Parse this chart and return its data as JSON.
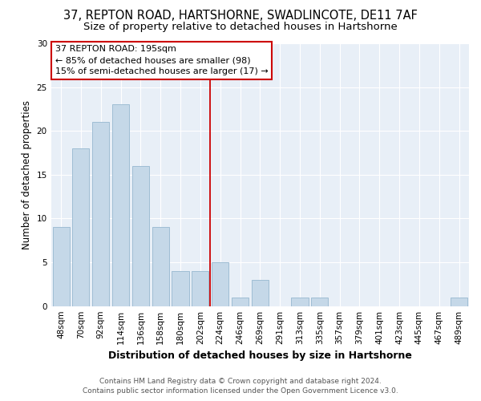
{
  "title1": "37, REPTON ROAD, HARTSHORNE, SWADLINCOTE, DE11 7AF",
  "title2": "Size of property relative to detached houses in Hartshorne",
  "xlabel": "Distribution of detached houses by size in Hartshorne",
  "ylabel": "Number of detached properties",
  "categories": [
    "48sqm",
    "70sqm",
    "92sqm",
    "114sqm",
    "136sqm",
    "158sqm",
    "180sqm",
    "202sqm",
    "224sqm",
    "246sqm",
    "269sqm",
    "291sqm",
    "313sqm",
    "335sqm",
    "357sqm",
    "379sqm",
    "401sqm",
    "423sqm",
    "445sqm",
    "467sqm",
    "489sqm"
  ],
  "values": [
    9,
    18,
    21,
    23,
    16,
    9,
    4,
    4,
    5,
    1,
    3,
    0,
    1,
    1,
    0,
    0,
    0,
    0,
    0,
    0,
    1
  ],
  "bar_color": "#c5d8e8",
  "bar_edge_color": "#9fbdd4",
  "vline_x_index": 7,
  "vline_color": "#cc0000",
  "ylim": [
    0,
    30
  ],
  "yticks": [
    0,
    5,
    10,
    15,
    20,
    25,
    30
  ],
  "annotation_title": "37 REPTON ROAD: 195sqm",
  "annotation_line1": "← 85% of detached houses are smaller (98)",
  "annotation_line2": "15% of semi-detached houses are larger (17) →",
  "annotation_box_facecolor": "#ffffff",
  "annotation_box_edgecolor": "#cc0000",
  "footer1": "Contains HM Land Registry data © Crown copyright and database right 2024.",
  "footer2": "Contains public sector information licensed under the Open Government Licence v3.0.",
  "fig_facecolor": "#ffffff",
  "plot_facecolor": "#e8eff7",
  "grid_color": "#ffffff",
  "title1_fontsize": 10.5,
  "title2_fontsize": 9.5,
  "xlabel_fontsize": 9,
  "ylabel_fontsize": 8.5,
  "tick_fontsize": 7.5,
  "annotation_fontsize": 8,
  "footer_fontsize": 6.5
}
